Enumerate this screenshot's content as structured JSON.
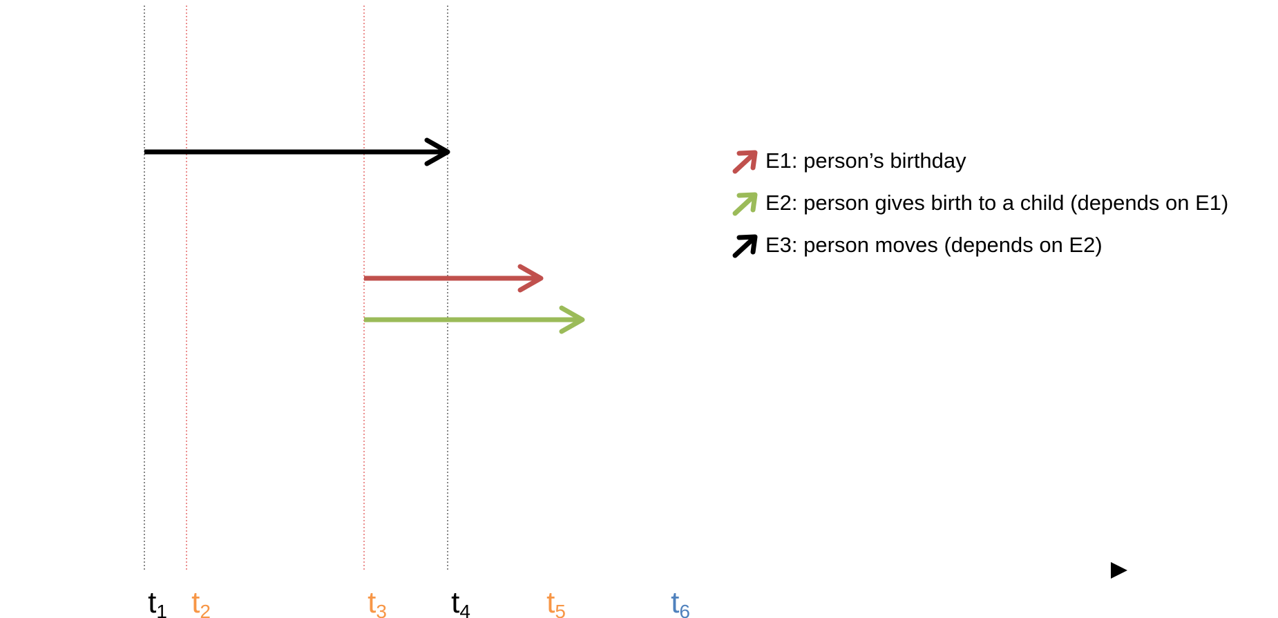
{
  "colors": {
    "black": "#000000",
    "red": "#c0504d",
    "green": "#9bbb59",
    "orange": "#f79646",
    "blue": "#4f81bd",
    "axis_dark": "#000000",
    "axis_light": "#eef2f6"
  },
  "time_points": [
    {
      "id": "t1",
      "base": "t",
      "sub": "1",
      "color": "#000000",
      "marker": "black-dotted"
    },
    {
      "id": "t2",
      "base": "t",
      "sub": "2",
      "color": "#f79646",
      "marker": "red-dotted"
    },
    {
      "id": "t3",
      "base": "t",
      "sub": "3",
      "color": "#f79646",
      "marker": "red-dotted"
    },
    {
      "id": "t4",
      "base": "t",
      "sub": "4",
      "color": "#000000",
      "marker": "black-dotted"
    },
    {
      "id": "t5",
      "base": "t",
      "sub": "5",
      "color": "#f79646",
      "marker": "none"
    },
    {
      "id": "t6",
      "base": "t",
      "sub": "6",
      "color": "#4f81bd",
      "marker": "none"
    }
  ],
  "events": [
    {
      "id": "E3",
      "from": "t1",
      "to": "t4",
      "color": "#000000"
    },
    {
      "id": "E1",
      "from": "t3",
      "to": "t5",
      "color": "#c0504d"
    },
    {
      "id": "E2",
      "from": "t3",
      "to": "t5",
      "color": "#9bbb59"
    }
  ],
  "legend": [
    {
      "id": "E1",
      "text": "E1: person’s birthday",
      "color": "#c0504d",
      "icon": "arrow-icon"
    },
    {
      "id": "E2",
      "text": "E2: person gives birth to a child (depends on E1)",
      "color": "#9bbb59",
      "icon": "arrow-icon"
    },
    {
      "id": "E3",
      "text": "E3: person moves (depends on E2)",
      "color": "#000000",
      "icon": "arrow-icon"
    }
  ]
}
